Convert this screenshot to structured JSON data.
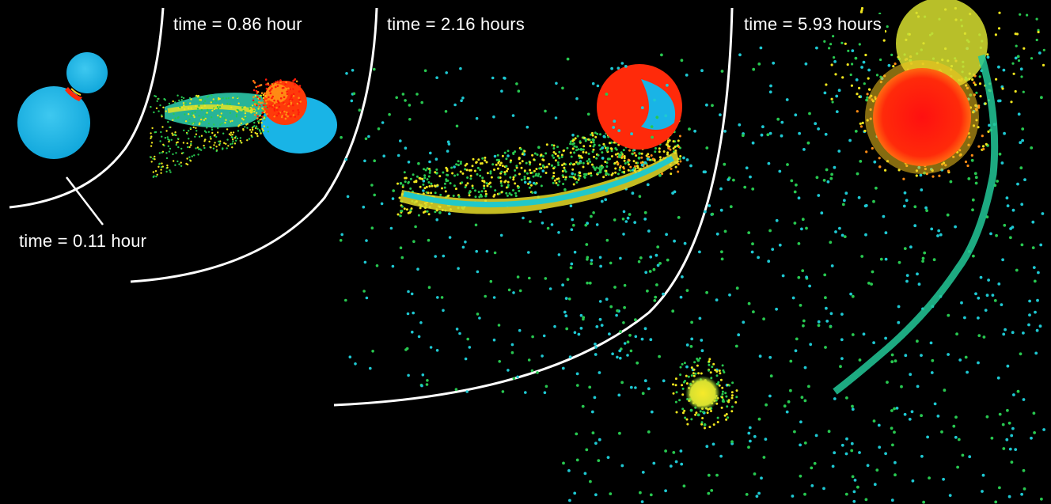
{
  "labels": {
    "t1": "time = 0.11 hour",
    "t2": "time = 0.86 hour",
    "t3": "time = 2.16 hours",
    "t4": "time = 5.93 hours"
  },
  "colors": {
    "background": "#000000",
    "divider": "#ffffff",
    "star_blue": "#19b4e6",
    "star_red": "#ff1a0a",
    "cyan_particle": "#1ec8d2",
    "green_particle": "#28c850",
    "yellow_particle": "#f0e61e",
    "orange_particle": "#ff8c14"
  }
}
